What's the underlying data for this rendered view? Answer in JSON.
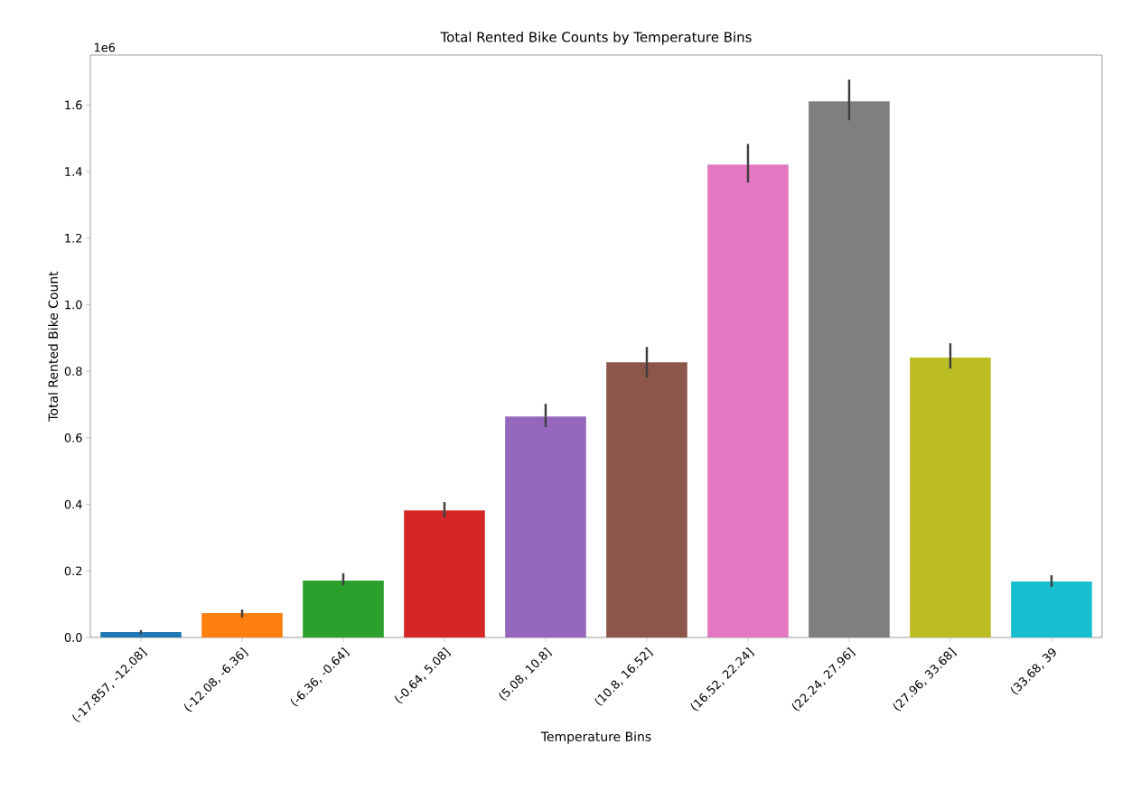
{
  "chart_data": {
    "type": "bar",
    "title": "Total Rented Bike Counts by Temperature Bins",
    "xlabel": "Temperature Bins",
    "ylabel": "Total Rented Bike Count",
    "annotations": [
      "1e6"
    ],
    "categories": [
      "(-17.857, -12.08]",
      "(-12.08, -6.36]",
      "(-6.36, -0.64]",
      "(-0.64, 5.08]",
      "(5.08, 10.8]",
      "(10.8, 16.52]",
      "(16.52, 22.24]",
      "(22.24, 27.96]",
      "(27.96, 33.68]",
      "(33.68, 39"
    ],
    "values": [
      0.016,
      0.073,
      0.171,
      0.382,
      0.664,
      0.827,
      1.421,
      1.611,
      0.841,
      0.168
    ],
    "errors": [
      [
        0.01,
        0.022
      ],
      [
        0.06,
        0.084
      ],
      [
        0.157,
        0.193
      ],
      [
        0.361,
        0.407
      ],
      [
        0.632,
        0.702
      ],
      [
        0.781,
        0.873
      ],
      [
        1.367,
        1.483
      ],
      [
        1.554,
        1.676
      ],
      [
        0.808,
        0.884
      ],
      [
        0.152,
        0.187
      ]
    ],
    "colors": [
      "#1f77b4",
      "#ff7f0e",
      "#2ca02c",
      "#d62728",
      "#9467bd",
      "#8c564b",
      "#e377c2",
      "#7f7f7f",
      "#bcbd22",
      "#17becf"
    ],
    "ylim": [
      0,
      1.75
    ],
    "yticks": [
      {
        "value": 0,
        "label": "0.0"
      },
      0.2,
      0.4,
      0.6,
      0.8,
      {
        "value": 1,
        "label": "1.0"
      },
      1.2,
      1.4,
      1.6
    ]
  }
}
